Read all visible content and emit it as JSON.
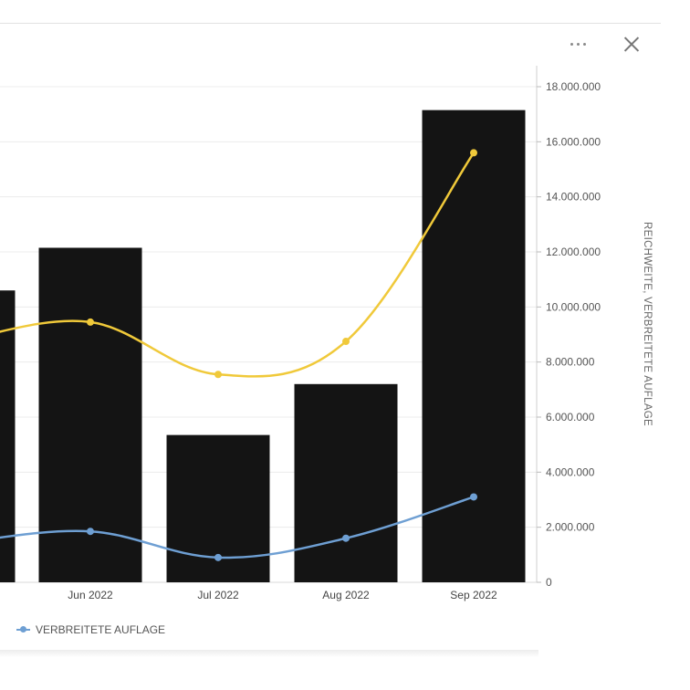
{
  "toolbar": {
    "more_icon": "more-horizontal-icon",
    "close_icon": "close-icon"
  },
  "colors": {
    "bar": "#141414",
    "reichweite": "#f0c93a",
    "auflage": "#6e9fd3",
    "grid": "#ececec"
  },
  "chart_data": {
    "type": "bar",
    "categories": [
      "",
      "Jun 2022",
      "Jul 2022",
      "Aug 2022",
      "Sep 2022"
    ],
    "series": [
      {
        "type": "bar",
        "values": [
          10600000,
          12150000,
          5350000,
          7200000,
          17150000
        ]
      },
      {
        "type": "line",
        "values": [
          8800000,
          9450000,
          7550000,
          8750000,
          15600000
        ]
      },
      {
        "type": "line",
        "name": "VERBREITETE AUFLAGE",
        "values": [
          1450000,
          1850000,
          900000,
          1600000,
          3100000
        ]
      }
    ],
    "y_axis": {
      "position": "right",
      "title": "REICHWEITE,   VERBREITETE AUFLAGE",
      "ticks": [
        "0",
        "2.000.000",
        "4.000.000",
        "6.000.000",
        "8.000.000",
        "10.000.000",
        "12.000.000",
        "14.000.000",
        "16.000.000",
        "18.000.000"
      ],
      "tick_values": [
        0,
        2000000,
        4000000,
        6000000,
        8000000,
        10000000,
        12000000,
        14000000,
        16000000,
        18000000
      ],
      "ylim": [
        0,
        18000000
      ]
    },
    "grid": true,
    "legend": {
      "position": "bottom-left",
      "entries": [
        "VERBREITETE AUFLAGE"
      ]
    }
  }
}
